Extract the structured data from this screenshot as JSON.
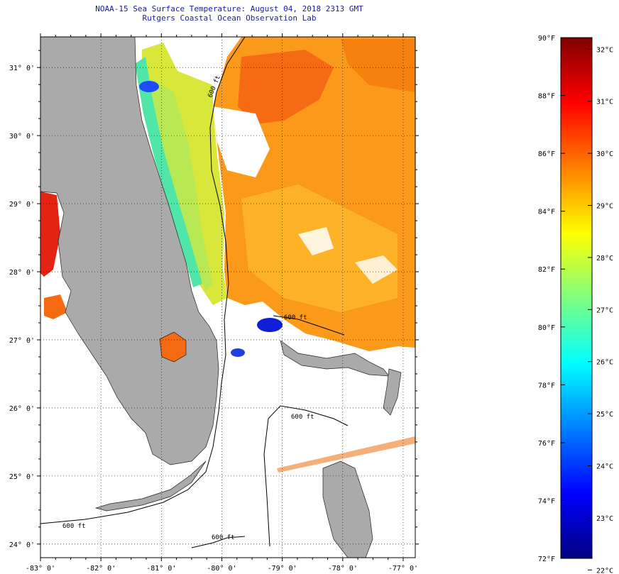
{
  "title": {
    "line1": "NOAA-15 Sea Surface Temperature:  August 04, 2018 2313 GMT",
    "line2": "Rutgers Coastal Ocean Observation Lab"
  },
  "map": {
    "lon_range": [
      -83,
      -76.8
    ],
    "lat_range": [
      23.8,
      31.45
    ],
    "lon_ticks": [
      "-83° 0'",
      "-82° 0'",
      "-81° 0'",
      "-80° 0'",
      "-79° 0'",
      "-78° 0'",
      "-77° 0'"
    ],
    "lon_tick_values": [
      -83,
      -82,
      -81,
      -80,
      -79,
      -78,
      -77
    ],
    "lat_ticks": [
      "24° 0'",
      "25° 0'",
      "26° 0'",
      "27° 0'",
      "28° 0'",
      "29° 0'",
      "30° 0'",
      "31° 0'"
    ],
    "lat_tick_values": [
      24,
      25,
      26,
      27,
      28,
      29,
      30,
      31
    ],
    "grid": "dotted",
    "land_color": "#aaaaaa",
    "contour_label": "600 ft"
  },
  "colorbar": {
    "f_labels": [
      "90°F",
      "88°F",
      "86°F",
      "84°F",
      "82°F",
      "80°F",
      "78°F",
      "76°F",
      "74°F",
      "72°F"
    ],
    "f_values": [
      90,
      88,
      86,
      84,
      82,
      80,
      78,
      76,
      74,
      72
    ],
    "c_labels": [
      "32°C",
      "31°C",
      "30°C",
      "29°C",
      "28°C",
      "27°C",
      "26°C",
      "25°C",
      "24°C",
      "23°C",
      "22°C"
    ],
    "c_values": [
      32,
      31,
      30,
      29,
      28,
      27,
      26,
      25,
      24,
      23,
      22
    ],
    "f_range": [
      72,
      90
    ],
    "colors": [
      "#00007f",
      "#0000ff",
      "#007fff",
      "#00ffff",
      "#7fff7f",
      "#ffff00",
      "#ff7f00",
      "#ff0000",
      "#7f0000"
    ]
  }
}
